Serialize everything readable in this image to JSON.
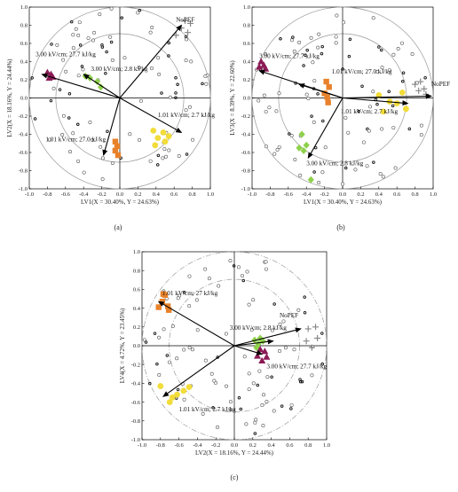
{
  "figure_captions": [
    "(a)",
    "(b)",
    "(c)"
  ],
  "colors": {
    "ring": "#9a9a9a",
    "axis": "#000000",
    "arrow": "#000000",
    "open_marker": "#555555",
    "dot_marker": "#111111",
    "triangle": "#8b1a55",
    "square": "#e8822a",
    "circle_fill": "#f2dc3a",
    "diamond": "#8ed14a",
    "plus": "#888888"
  },
  "marker_icons": {
    "triangle": "triangle-icon",
    "square": "square-icon",
    "circle": "circle-icon",
    "diamond": "diamond-icon",
    "plus": "plus-icon"
  },
  "chart_data": [
    {
      "id": "a",
      "type": "scatter",
      "subtype": "correlation-loadings-biplot",
      "xlabel": "LV1(X = 30.40%, Y = 24.63%)",
      "ylabel": "LV2(X = 18.16%, Y = 24.44%)",
      "xlim": [
        -1.0,
        1.0
      ],
      "ylim": [
        -1.0,
        1.0
      ],
      "xticks": [
        "-1.0",
        "-0.8",
        "-0.6",
        "-0.4",
        "-0.2",
        "0.0",
        "0.2",
        "0.4",
        "0.6",
        "0.8",
        "1.0"
      ],
      "yticks": [
        "-1.0",
        "-0.8",
        "-0.6",
        "-0.4",
        "-0.2",
        "0.0",
        "0.2",
        "0.4",
        "0.6",
        "0.8",
        "1.0"
      ],
      "circles": [
        0.707,
        1.0
      ],
      "grid": false,
      "caption": "(a)",
      "arrows": [
        {
          "label": "NoPEF",
          "x": 0.68,
          "y": 0.8,
          "label_x": 0.62,
          "label_y": 0.84
        },
        {
          "label": "3.00 kV/cm; 27.7 kJ/kg",
          "x": -0.86,
          "y": 0.26,
          "label_x": -0.93,
          "label_y": 0.46
        },
        {
          "label": "3.00 kV/cm; 2.8 kJ/kg",
          "x": -0.4,
          "y": 0.26,
          "label_x": -0.32,
          "label_y": 0.3
        },
        {
          "label": "1.01 kV/cm; 2.7 kJ/kg",
          "x": 0.68,
          "y": -0.38,
          "label_x": 0.42,
          "label_y": -0.21
        },
        {
          "label": "1.01 kV/cm; 27.0 kJ/kg",
          "x": -0.18,
          "y": -0.63,
          "label_x": -0.82,
          "label_y": -0.48
        }
      ],
      "groups": [
        {
          "marker": "triangle",
          "points": [
            [
              -0.8,
              0.28
            ],
            [
              -0.76,
              0.26
            ],
            [
              -0.74,
              0.23
            ],
            [
              -0.78,
              0.22
            ]
          ]
        },
        {
          "marker": "diamond",
          "points": [
            [
              -0.38,
              0.24
            ],
            [
              -0.33,
              0.22
            ],
            [
              -0.25,
              0.18
            ],
            [
              -0.21,
              0.12
            ]
          ]
        },
        {
          "marker": "square",
          "points": [
            [
              -0.05,
              -0.48
            ],
            [
              -0.03,
              -0.53
            ],
            [
              -0.05,
              -0.58
            ],
            [
              -0.02,
              -0.63
            ]
          ]
        },
        {
          "marker": "circle",
          "points": [
            [
              0.37,
              -0.36
            ],
            [
              0.42,
              -0.44
            ],
            [
              0.48,
              -0.38
            ],
            [
              0.5,
              -0.48
            ],
            [
              0.39,
              -0.52
            ],
            [
              0.54,
              -0.42
            ]
          ]
        },
        {
          "marker": "plus",
          "points": [
            [
              0.72,
              0.85
            ],
            [
              0.78,
              0.82
            ],
            [
              0.68,
              0.77
            ],
            [
              0.75,
              0.72
            ],
            [
              0.62,
              0.69
            ]
          ]
        }
      ]
    },
    {
      "id": "b",
      "type": "scatter",
      "subtype": "correlation-loadings-biplot",
      "xlabel": "LV1(X = 30.40%, Y = 24.63%)",
      "ylabel": "LV3(X = 8.39%, Y = 22.60%)",
      "xlim": [
        -1.0,
        1.0
      ],
      "ylim": [
        -1.0,
        1.0
      ],
      "xticks": [
        "-1.0",
        "-0.8",
        "-0.6",
        "-0.4",
        "-0.2",
        "0.0",
        "0.2",
        "0.4",
        "0.6",
        "0.8",
        "1.0"
      ],
      "yticks": [
        "-1.0",
        "-0.8",
        "-0.6",
        "-0.4",
        "-0.2",
        "0.0",
        "0.2",
        "0.4",
        "0.6",
        "0.8",
        "1.0"
      ],
      "circles": [
        0.707,
        1.0
      ],
      "grid": false,
      "caption": "(b)",
      "arrows": [
        {
          "label": "NoPEF",
          "x": 0.98,
          "y": 0.02,
          "label_x": 0.98,
          "label_y": 0.13
        },
        {
          "label": "3.00 kV/cm; 27.7 kJ/kg",
          "x": -0.92,
          "y": 0.3,
          "label_x": -0.92,
          "label_y": 0.44
        },
        {
          "label": "1.01 kV/cm; 27.0 kJ/kg",
          "x": -0.48,
          "y": 0.15,
          "label_x": -0.12,
          "label_y": 0.27
        },
        {
          "label": "1.01 kV/cm; 2.7 kJ/kg",
          "x": 0.72,
          "y": -0.06,
          "label_x": -0.02,
          "label_y": -0.17
        },
        {
          "label": "3.00 kV/cm; 2.8 kJ/kg",
          "x": -0.38,
          "y": -0.66,
          "label_x": -0.4,
          "label_y": -0.74
        }
      ],
      "groups": [
        {
          "marker": "triangle",
          "points": [
            [
              -0.9,
              0.4
            ],
            [
              -0.87,
              0.36
            ],
            [
              -0.92,
              0.34
            ],
            [
              -0.85,
              0.32
            ]
          ]
        },
        {
          "marker": "square",
          "points": [
            [
              -0.18,
              0.18
            ],
            [
              -0.15,
              0.12
            ],
            [
              -0.2,
              0.05
            ],
            [
              -0.17,
              0.01
            ],
            [
              -0.16,
              -0.05
            ]
          ]
        },
        {
          "marker": "circle",
          "points": [
            [
              0.4,
              0.03
            ],
            [
              0.52,
              -0.04
            ],
            [
              0.6,
              -0.06
            ],
            [
              0.7,
              -0.12
            ],
            [
              0.45,
              -0.15
            ],
            [
              0.66,
              0.06
            ]
          ]
        },
        {
          "marker": "diamond",
          "points": [
            [
              -0.45,
              -0.4
            ],
            [
              -0.48,
              -0.55
            ],
            [
              -0.43,
              -0.58
            ],
            [
              -0.4,
              -0.52
            ],
            [
              -0.35,
              -0.9
            ]
          ]
        },
        {
          "marker": "plus",
          "points": [
            [
              0.8,
              0.15
            ],
            [
              0.86,
              0.18
            ],
            [
              0.9,
              0.1
            ],
            [
              0.92,
              0.04
            ],
            [
              0.84,
              0.08
            ]
          ]
        }
      ]
    },
    {
      "id": "c",
      "type": "scatter",
      "subtype": "correlation-loadings-biplot",
      "xlabel": "LV2(X = 18.16%, Y = 24.44%)",
      "ylabel": "LV4(X = 4.72%, Y = 23.45%)",
      "xlim": [
        -1.0,
        1.0
      ],
      "ylim": [
        -1.0,
        1.0
      ],
      "xticks": [
        "-1.0",
        "-0.8",
        "-0.6",
        "-0.4",
        "-0.2",
        "0.0",
        "0.2",
        "0.4",
        "0.6",
        "0.8",
        "1.0"
      ],
      "yticks": [
        "-1.0",
        "-0.8",
        "-0.6",
        "-0.4",
        "-0.2",
        "0.0",
        "0.2",
        "0.4",
        "0.6",
        "0.8",
        "1.0"
      ],
      "circles": [
        0.707,
        1.0
      ],
      "grid": false,
      "caption": "(c)",
      "arrows": [
        {
          "label": "1.01 kV/cm; 27 kJ/kg",
          "x": -0.82,
          "y": 0.47,
          "label_x": -0.78,
          "label_y": 0.54
        },
        {
          "label": "NoPEF",
          "x": 0.72,
          "y": 0.18,
          "label_x": 0.49,
          "label_y": 0.3
        },
        {
          "label": "3.00 kV/cm; 2.8 kJ/kg",
          "x": 0.42,
          "y": 0.05,
          "label_x": -0.05,
          "label_y": 0.17
        },
        {
          "label": "3.00 kV/cm; 27.7 kJ/kg",
          "x": 0.3,
          "y": -0.09,
          "label_x": 0.35,
          "label_y": -0.24
        },
        {
          "label": "1.01 kV/cm; 2.7 kJ/kg",
          "x": -0.77,
          "y": -0.54,
          "label_x": -0.6,
          "label_y": -0.7
        }
      ],
      "groups": [
        {
          "marker": "square",
          "points": [
            [
              -0.82,
              0.41
            ],
            [
              -0.78,
              0.47
            ],
            [
              -0.75,
              0.54
            ],
            [
              -0.71,
              0.38
            ],
            [
              -0.72,
              0.42
            ],
            [
              -0.77,
              0.55
            ]
          ]
        },
        {
          "marker": "circle",
          "points": [
            [
              -0.67,
              -0.55
            ],
            [
              -0.7,
              -0.6
            ],
            [
              -0.62,
              -0.52
            ],
            [
              -0.55,
              -0.48
            ],
            [
              -0.49,
              -0.44
            ],
            [
              -0.8,
              -0.43
            ]
          ]
        },
        {
          "marker": "diamond",
          "points": [
            [
              0.22,
              0.06
            ],
            [
              0.26,
              0.02
            ],
            [
              0.31,
              0.05
            ],
            [
              0.28,
              0.08
            ],
            [
              0.24,
              -0.02
            ]
          ]
        },
        {
          "marker": "triangle",
          "points": [
            [
              0.25,
              -0.11
            ],
            [
              0.3,
              -0.16
            ],
            [
              0.35,
              -0.12
            ],
            [
              0.33,
              -0.06
            ],
            [
              0.28,
              -0.04
            ]
          ]
        },
        {
          "marker": "plus",
          "points": [
            [
              0.8,
              0.18
            ],
            [
              0.88,
              0.2
            ],
            [
              0.9,
              0.08
            ],
            [
              0.84,
              -0.02
            ],
            [
              0.78,
              0.05
            ]
          ]
        }
      ]
    }
  ]
}
